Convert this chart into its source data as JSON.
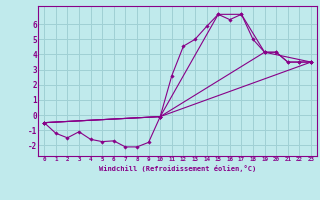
{
  "background_color": "#c0eaec",
  "grid_color": "#a0d0d4",
  "line_color": "#880088",
  "marker_color": "#880088",
  "xlabel": "Windchill (Refroidissement éolien,°C)",
  "xlim": [
    -0.5,
    23.5
  ],
  "ylim": [
    -2.7,
    7.2
  ],
  "yticks": [
    -2,
    -1,
    0,
    1,
    2,
    3,
    4,
    5,
    6
  ],
  "xticks": [
    0,
    1,
    2,
    3,
    4,
    5,
    6,
    7,
    8,
    9,
    10,
    11,
    12,
    13,
    14,
    15,
    16,
    17,
    18,
    19,
    20,
    21,
    22,
    23
  ],
  "series": [
    {
      "x": [
        0,
        1,
        2,
        3,
        4,
        5,
        6,
        7,
        8,
        9,
        10,
        11,
        12,
        13,
        14,
        15,
        16,
        17,
        18,
        19,
        20,
        21,
        22,
        23
      ],
      "y": [
        -0.5,
        -1.2,
        -1.5,
        -1.1,
        -1.6,
        -1.75,
        -1.7,
        -2.1,
        -2.1,
        -1.8,
        -0.1,
        2.6,
        4.55,
        5.0,
        5.85,
        6.65,
        6.3,
        6.65,
        5.0,
        4.15,
        4.15,
        3.5,
        3.5,
        3.5
      ]
    },
    {
      "x": [
        0,
        10,
        15,
        17,
        19,
        20,
        21,
        22,
        23
      ],
      "y": [
        -0.5,
        -0.1,
        6.65,
        6.65,
        4.15,
        4.15,
        3.5,
        3.5,
        3.5
      ]
    },
    {
      "x": [
        0,
        10,
        23
      ],
      "y": [
        -0.5,
        -0.1,
        3.5
      ]
    },
    {
      "x": [
        0,
        10,
        19,
        23
      ],
      "y": [
        -0.5,
        -0.1,
        4.15,
        3.5
      ]
    }
  ]
}
